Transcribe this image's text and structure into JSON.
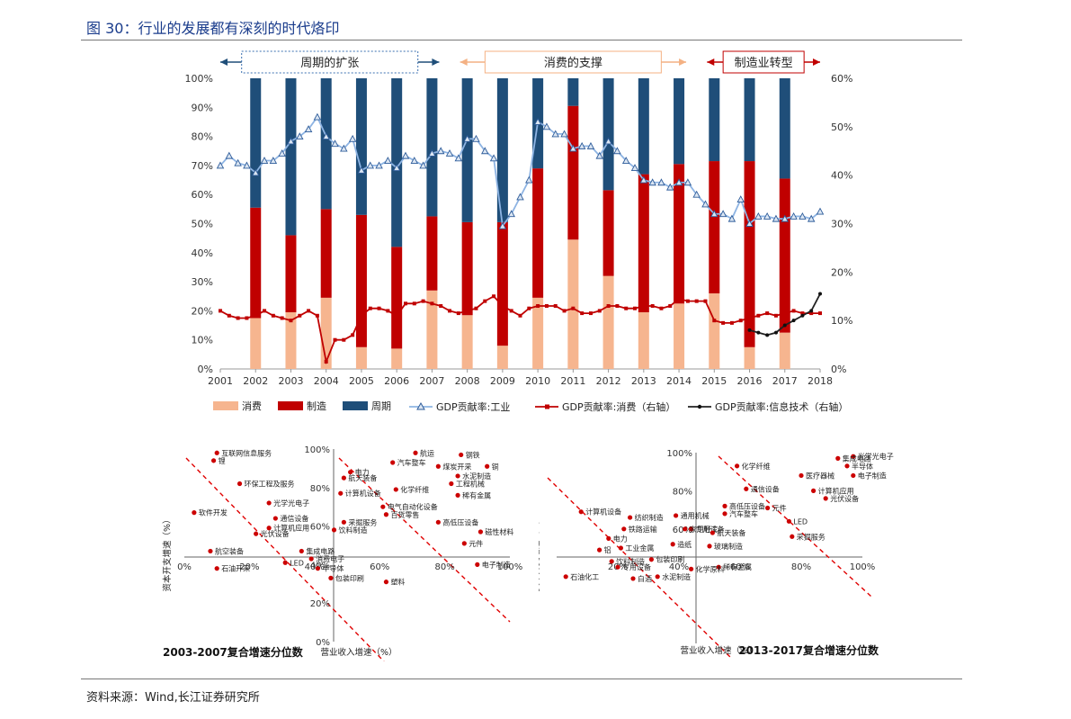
{
  "page": {
    "title": "图 30：行业的发展都有深刻的时代烙印",
    "source": "资料来源：Wind,长江证券研究所"
  },
  "colors": {
    "consume": "#f6b58f",
    "manufacture": "#c00000",
    "cycle": "#1f4e79",
    "gdp_industry": "#8eb4e3",
    "gdp_consume": "#c00000",
    "gdp_it": "#222222",
    "title": "#1a3c8c",
    "scatter_dot": "#cc0000",
    "grid_box": "#3a6fb0",
    "arrow_consume": "#f4b183"
  },
  "chart_data": [
    {
      "type": "bar",
      "stacked": true,
      "phases": [
        {
          "label": "周期的扩张",
          "from": 2001,
          "to": 2007
        },
        {
          "label": "消费的支撑",
          "from": 2008,
          "to": 2014
        },
        {
          "label": "制造业转型",
          "from": 2015,
          "to": 2018
        }
      ],
      "x_ticks": [
        2001,
        2002,
        2003,
        2004,
        2005,
        2006,
        2007,
        2008,
        2009,
        2010,
        2011,
        2012,
        2013,
        2014,
        2015,
        2016,
        2017,
        2018
      ],
      "y_left_ticks": [
        "0%",
        "10%",
        "20%",
        "30%",
        "40%",
        "50%",
        "60%",
        "70%",
        "80%",
        "90%",
        "100%"
      ],
      "y_right_ticks": [
        "0%",
        "10%",
        "20%",
        "30%",
        "40%",
        "50%",
        "60%"
      ],
      "ylim_left": [
        0,
        100
      ],
      "ylim_right": [
        0,
        60
      ],
      "bar_years": [
        2002,
        2003,
        2004,
        2005,
        2006,
        2007,
        2008,
        2009,
        2010,
        2011,
        2012,
        2013,
        2014,
        2015,
        2016,
        2017
      ],
      "bars": [
        {
          "name": "消费",
          "values": [
            17.5,
            19.5,
            24.5,
            7.5,
            7,
            27,
            18.5,
            8,
            24.5,
            44.5,
            32,
            19.5,
            22.5,
            26,
            7.5,
            12.5
          ]
        },
        {
          "name": "制造",
          "values": [
            38,
            26.5,
            30.5,
            45.5,
            35,
            25.5,
            32,
            42.5,
            44.5,
            46,
            29.5,
            47.5,
            48,
            45.5,
            64,
            53
          ]
        },
        {
          "name": "周期",
          "values": [
            44.5,
            54,
            45,
            47,
            58,
            47.5,
            49.5,
            49.5,
            31,
            9.5,
            38.5,
            33,
            29.5,
            28.5,
            28.5,
            34.5
          ]
        }
      ],
      "lines": [
        {
          "name": "GDP贡献率:工业",
          "axis": "right",
          "x": [
            2001,
            2001.25,
            2001.5,
            2001.75,
            2002,
            2002.25,
            2002.5,
            2002.75,
            2003,
            2003.25,
            2003.5,
            2003.75,
            2004,
            2004.25,
            2004.5,
            2004.75,
            2005,
            2005.25,
            2005.5,
            2005.75,
            2006,
            2006.25,
            2006.5,
            2006.75,
            2007,
            2007.25,
            2007.5,
            2007.75,
            2008,
            2008.25,
            2008.5,
            2008.75,
            2009,
            2009.25,
            2009.5,
            2009.75,
            2010,
            2010.25,
            2010.5,
            2010.75,
            2011,
            2011.25,
            2011.5,
            2011.75,
            2012,
            2012.25,
            2012.5,
            2012.75,
            2013,
            2013.25,
            2013.5,
            2013.75,
            2014,
            2014.25,
            2014.5,
            2014.75,
            2015,
            2015.25,
            2015.5,
            2015.75,
            2016,
            2016.25,
            2016.5,
            2016.75,
            2017,
            2017.25,
            2017.5,
            2017.75,
            2018
          ],
          "values": [
            42,
            44,
            42.5,
            42,
            40.5,
            43,
            43,
            44.5,
            47,
            48,
            49.5,
            52,
            48,
            46.5,
            45.5,
            47.5,
            41,
            42,
            42,
            43,
            41.5,
            44,
            43,
            42,
            44.5,
            45,
            44.5,
            43.5,
            47.5,
            47.5,
            45,
            43.5,
            29.5,
            32,
            35.5,
            39,
            51,
            50,
            48.5,
            48.5,
            45.5,
            46,
            46,
            44,
            47,
            45,
            43,
            41.5,
            39,
            38.5,
            38.5,
            37.5,
            38.5,
            38.5,
            36,
            34,
            32,
            32,
            31,
            35,
            30,
            31.5,
            31.5,
            31,
            31,
            31.5,
            31.5,
            31,
            32.5
          ]
        },
        {
          "name": "GDP贡献率:消费（右轴）",
          "axis": "right",
          "x": [
            2001,
            2001.25,
            2001.5,
            2001.75,
            2002,
            2002.25,
            2002.5,
            2002.75,
            2003,
            2003.25,
            2003.5,
            2003.75,
            2004,
            2004.25,
            2004.5,
            2004.75,
            2005,
            2005.25,
            2005.5,
            2005.75,
            2006,
            2006.25,
            2006.5,
            2006.75,
            2007,
            2007.25,
            2007.5,
            2007.75,
            2008,
            2008.25,
            2008.5,
            2008.75,
            2009,
            2009.25,
            2009.5,
            2009.75,
            2010,
            2010.25,
            2010.5,
            2010.75,
            2011,
            2011.25,
            2011.5,
            2011.75,
            2012,
            2012.25,
            2012.5,
            2012.75,
            2013,
            2013.25,
            2013.5,
            2013.75,
            2014,
            2014.25,
            2014.5,
            2014.75,
            2015,
            2015.25,
            2015.5,
            2015.75,
            2016,
            2016.25,
            2016.5,
            2016.75,
            2017,
            2017.25,
            2017.5,
            2017.75,
            2018
          ],
          "values": [
            12,
            11,
            10.5,
            10.5,
            11,
            12,
            11,
            10.5,
            10,
            11,
            12,
            11,
            1.5,
            6,
            6,
            7,
            11,
            12.5,
            12.5,
            12,
            11,
            13.5,
            13.5,
            14,
            13.5,
            13,
            12,
            11.5,
            12,
            12.5,
            14,
            15,
            13,
            12,
            11,
            12.5,
            13,
            13,
            13,
            12,
            12.5,
            11.5,
            11.5,
            12,
            13,
            13,
            12.5,
            12.5,
            13,
            13,
            12.5,
            13,
            14.5,
            14,
            14,
            14,
            10,
            9.5,
            9.5,
            10,
            10.5,
            11,
            11.5,
            11,
            11.5,
            12,
            11.5,
            11.5,
            11.5
          ]
        },
        {
          "name": "GDP贡献率:信息技术（右轴）",
          "axis": "right",
          "x": [
            2016,
            2016.25,
            2016.5,
            2016.75,
            2017,
            2017.25,
            2017.5,
            2017.75,
            2018
          ],
          "values": [
            8,
            7.5,
            7,
            7.5,
            9,
            10,
            11,
            12,
            15.5
          ]
        }
      ]
    },
    {
      "type": "scatter",
      "title": "2003-2007复合增速分位数",
      "xlabel": "营业收入增速（%）",
      "ylabel": "资本开支增速（%）",
      "x_ticks": [
        "0%",
        "20%",
        "40%",
        "60%",
        "80%",
        "100%"
      ],
      "y_ticks": [
        "0%",
        "20%",
        "40%",
        "60%",
        "80%",
        "100%"
      ],
      "xlim": [
        0,
        100
      ],
      "ylim": [
        0,
        100
      ],
      "points": [
        {
          "label": "互联网信息服务",
          "x": 10,
          "y": 98
        },
        {
          "label": "锂",
          "x": 9,
          "y": 94
        },
        {
          "label": "环保工程及服务",
          "x": 17,
          "y": 82
        },
        {
          "label": "光学光电子",
          "x": 26,
          "y": 72
        },
        {
          "label": "软件开发",
          "x": 3,
          "y": 67
        },
        {
          "label": "通信设备",
          "x": 28,
          "y": 64
        },
        {
          "label": "计算机应用",
          "x": 26,
          "y": 59
        },
        {
          "label": "光伏设备",
          "x": 22,
          "y": 56
        },
        {
          "label": "航空装备",
          "x": 8,
          "y": 47
        },
        {
          "label": "集成电路",
          "x": 36,
          "y": 47
        },
        {
          "label": "LED",
          "x": 31,
          "y": 41
        },
        {
          "label": "石油开采",
          "x": 10,
          "y": 38
        },
        {
          "label": "消费电子",
          "x": 39,
          "y": 43
        },
        {
          "label": "半导体",
          "x": 41,
          "y": 38
        },
        {
          "label": "包装印刷",
          "x": 45,
          "y": 33
        },
        {
          "label": "航运",
          "x": 71,
          "y": 98
        },
        {
          "label": "钢铁",
          "x": 85,
          "y": 97
        },
        {
          "label": "汽车整车",
          "x": 64,
          "y": 93
        },
        {
          "label": "煤炭开采",
          "x": 78,
          "y": 91
        },
        {
          "label": "铜",
          "x": 93,
          "y": 91
        },
        {
          "label": "电力",
          "x": 51,
          "y": 88
        },
        {
          "label": "水泥制造",
          "x": 84,
          "y": 86
        },
        {
          "label": "航天装备",
          "x": 49,
          "y": 85
        },
        {
          "label": "工程机械",
          "x": 82,
          "y": 82
        },
        {
          "label": "化学纤维",
          "x": 65,
          "y": 79
        },
        {
          "label": "计算机设备",
          "x": 48,
          "y": 77
        },
        {
          "label": "稀有金属",
          "x": 84,
          "y": 76
        },
        {
          "label": "电气自动化设备",
          "x": 61,
          "y": 70
        },
        {
          "label": "百货零售",
          "x": 62,
          "y": 66
        },
        {
          "label": "采掘服务",
          "x": 49,
          "y": 62
        },
        {
          "label": "高低压设备",
          "x": 78,
          "y": 62
        },
        {
          "label": "饮料制造",
          "x": 46,
          "y": 58
        },
        {
          "label": "磁性材料",
          "x": 91,
          "y": 57
        },
        {
          "label": "元件",
          "x": 86,
          "y": 51
        },
        {
          "label": "电子制造",
          "x": 90,
          "y": 40
        },
        {
          "label": "塑料",
          "x": 62,
          "y": 31
        }
      ]
    },
    {
      "type": "scatter",
      "title": "2013-2017复合增速分位数",
      "xlabel": "营业收入增速（%）",
      "ylabel": "资本开支增速（%）",
      "x_ticks": [
        "20%",
        "40%",
        "60%",
        "80%",
        "100%"
      ],
      "y_ticks": [
        "60%",
        "80%",
        "100%"
      ],
      "xlim": [
        0,
        100
      ],
      "ylim": [
        0,
        100
      ],
      "points": [
        {
          "label": "光学光电子",
          "x": 97,
          "y": 98
        },
        {
          "label": "集成电路",
          "x": 92,
          "y": 97
        },
        {
          "label": "半导体",
          "x": 95,
          "y": 93
        },
        {
          "label": "电子制造",
          "x": 97,
          "y": 88
        },
        {
          "label": "化学纤维",
          "x": 59,
          "y": 93
        },
        {
          "label": "医疗器械",
          "x": 80,
          "y": 88
        },
        {
          "label": "计算机应用",
          "x": 84,
          "y": 80
        },
        {
          "label": "光伏设备",
          "x": 88,
          "y": 76
        },
        {
          "label": "通信设备",
          "x": 62,
          "y": 81
        },
        {
          "label": "高低压设备",
          "x": 55,
          "y": 72
        },
        {
          "label": "元件",
          "x": 69,
          "y": 71
        },
        {
          "label": "汽车整车",
          "x": 55,
          "y": 68
        },
        {
          "label": "计算机设备",
          "x": 8,
          "y": 69
        },
        {
          "label": "纺织制造",
          "x": 24,
          "y": 66
        },
        {
          "label": "通用机械",
          "x": 39,
          "y": 67
        },
        {
          "label": "LED",
          "x": 76,
          "y": 64
        },
        {
          "label": "专用设备",
          "x": 44,
          "y": 60
        },
        {
          "label": "铁路运输",
          "x": 22,
          "y": 60
        },
        {
          "label": "家用轻工",
          "x": 42,
          "y": 60
        },
        {
          "label": "航天装备",
          "x": 51,
          "y": 58
        },
        {
          "label": "采掘服务",
          "x": 77,
          "y": 56
        },
        {
          "label": "电力",
          "x": 17,
          "y": 55
        },
        {
          "label": "造纸",
          "x": 38,
          "y": 52
        },
        {
          "label": "玻璃制造",
          "x": 50,
          "y": 51
        },
        {
          "label": "工业金属",
          "x": 21,
          "y": 50
        },
        {
          "label": "铝",
          "x": 14,
          "y": 49
        },
        {
          "label": "包装印刷",
          "x": 31,
          "y": 44
        },
        {
          "label": "饮料制造",
          "x": 18,
          "y": 43
        },
        {
          "label": "专用设备",
          "x": 20,
          "y": 40
        },
        {
          "label": "稀有金属",
          "x": 53,
          "y": 40
        },
        {
          "label": "化学原料",
          "x": 44,
          "y": 39
        },
        {
          "label": "石油化工",
          "x": 3,
          "y": 35
        },
        {
          "label": "白酒",
          "x": 25,
          "y": 34
        },
        {
          "label": "水泥制造",
          "x": 33,
          "y": 35
        }
      ]
    }
  ]
}
